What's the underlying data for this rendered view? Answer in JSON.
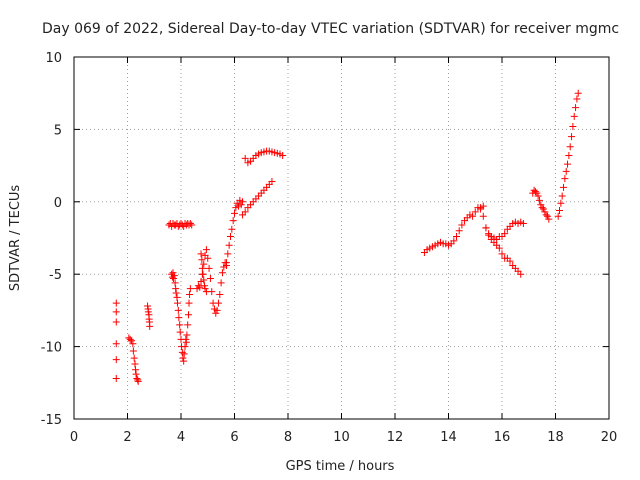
{
  "chart_data": {
    "type": "scatter",
    "title": "Day 069 of 2022, Sidereal Day-to-day VTEC variation (SDTVAR) for receiver mgmc",
    "xlabel": "GPS time / hours",
    "ylabel": "SDTVAR / TECUs",
    "xlim": [
      0,
      20
    ],
    "ylim": [
      -15,
      10
    ],
    "x_ticks": [
      0,
      2,
      4,
      6,
      8,
      10,
      12,
      14,
      16,
      18,
      20
    ],
    "y_ticks": [
      -15,
      -10,
      -5,
      0,
      5,
      10
    ],
    "grid": true,
    "marker": "+",
    "color": "#ff0000",
    "series": [
      {
        "name": "seg_1.6",
        "x": [
          1.58,
          1.58,
          1.58,
          1.58,
          1.58,
          1.58
        ],
        "y": [
          -7.0,
          -7.6,
          -8.3,
          -9.8,
          -10.9,
          -12.2
        ]
      },
      {
        "name": "seg_2.1",
        "x": [
          2.05,
          2.1,
          2.15,
          2.2,
          2.22,
          2.25,
          2.28,
          2.3,
          2.32,
          2.35,
          2.38,
          2.4
        ],
        "y": [
          -9.4,
          -9.5,
          -9.6,
          -9.8,
          -10.3,
          -10.8,
          -11.2,
          -11.6,
          -11.9,
          -12.2,
          -12.3,
          -12.4
        ]
      },
      {
        "name": "seg_2.8",
        "x": [
          2.75,
          2.77,
          2.78,
          2.8,
          2.81,
          2.82,
          2.83
        ],
        "y": [
          -7.2,
          -7.4,
          -7.6,
          -7.8,
          -8.1,
          -8.3,
          -8.6
        ]
      },
      {
        "name": "seg_3.6",
        "x": [
          3.55,
          3.6,
          3.65,
          3.7,
          3.75,
          3.8,
          3.85,
          3.9,
          3.95,
          4.0,
          4.05,
          4.1,
          4.15,
          4.2,
          4.25,
          4.3,
          4.35,
          4.4
        ],
        "y": [
          -1.6,
          -1.5,
          -1.7,
          -1.5,
          -1.6,
          -1.6,
          -1.5,
          -1.7,
          -1.6,
          -1.5,
          -1.6,
          -1.7,
          -1.5,
          -1.6,
          -1.5,
          -1.6,
          -1.5,
          -1.6
        ]
      },
      {
        "name": "seg_3.7",
        "x": [
          3.65,
          3.68,
          3.7,
          3.72,
          3.75,
          3.78,
          3.8,
          3.82,
          3.85,
          3.87,
          3.9,
          3.92,
          3.95,
          3.97,
          4.0,
          4.02,
          4.05,
          4.07,
          4.1,
          4.12,
          4.15,
          4.18,
          4.2,
          4.22,
          4.25,
          4.28,
          4.3,
          4.32,
          4.35
        ],
        "y": [
          -5.0,
          -5.2,
          -4.9,
          -5.3,
          -5.1,
          -5.6,
          -6.0,
          -6.3,
          -6.6,
          -7.0,
          -7.5,
          -8.0,
          -8.5,
          -9.0,
          -9.5,
          -10.0,
          -10.4,
          -10.8,
          -11.0,
          -10.5,
          -10.0,
          -9.5,
          -9.7,
          -9.2,
          -8.5,
          -7.8,
          -7.0,
          -6.4,
          -6.0
        ]
      },
      {
        "name": "seg_4.4",
        "x": [
          4.6,
          4.65,
          4.7,
          4.75,
          4.8,
          4.85,
          4.9,
          4.95,
          5.0,
          5.05,
          5.1,
          5.15,
          5.2,
          5.25,
          5.3,
          5.35,
          5.4,
          5.45,
          5.5,
          5.55,
          5.6,
          5.65,
          5.7
        ],
        "y": [
          -6.0,
          -5.8,
          -5.9,
          -5.5,
          -5.0,
          -4.3,
          -3.7,
          -3.3,
          -3.9,
          -4.6,
          -5.3,
          -6.2,
          -7.0,
          -7.4,
          -7.7,
          -7.5,
          -7.0,
          -6.4,
          -5.6,
          -4.9,
          -4.5,
          -4.2,
          -4.4
        ]
      },
      {
        "name": "seg_4.8",
        "x": [
          4.75,
          4.78,
          4.8,
          4.82,
          4.85,
          4.88,
          4.9,
          4.95
        ],
        "y": [
          -3.6,
          -4.0,
          -4.6,
          -5.0,
          -5.4,
          -5.8,
          -6.0,
          -6.2
        ]
      },
      {
        "name": "seg_5.7",
        "x": [
          5.7,
          5.75,
          5.8,
          5.85,
          5.9,
          5.95,
          6.0,
          6.05,
          6.1,
          6.15,
          6.2,
          6.25,
          6.3
        ],
        "y": [
          -4.2,
          -3.6,
          -3.0,
          -2.4,
          -1.9,
          -1.3,
          -0.8,
          -0.4,
          -0.1,
          -0.3,
          0.1,
          -0.2,
          0.0
        ]
      },
      {
        "name": "seg_6.3",
        "x": [
          6.3,
          6.4,
          6.5,
          6.6,
          6.7,
          6.8,
          6.9,
          7.0,
          7.1,
          7.2,
          7.3,
          7.4
        ],
        "y": [
          -0.9,
          -0.7,
          -0.4,
          -0.2,
          0.0,
          0.2,
          0.4,
          0.6,
          0.8,
          1.0,
          1.2,
          1.4
        ]
      },
      {
        "name": "seg_6.4",
        "x": [
          6.4,
          6.5,
          6.6,
          6.7,
          6.8,
          6.9,
          7.0,
          7.1,
          7.2,
          7.3,
          7.4,
          7.5,
          7.6,
          7.7,
          7.8
        ],
        "y": [
          3.0,
          2.7,
          2.8,
          3.0,
          3.2,
          3.3,
          3.4,
          3.45,
          3.5,
          3.5,
          3.45,
          3.4,
          3.35,
          3.3,
          3.2
        ]
      },
      {
        "name": "seg_13.1",
        "x": [
          13.1,
          13.2,
          13.3,
          13.4,
          13.5,
          13.6,
          13.7,
          13.8,
          13.9,
          14.0,
          14.1,
          14.2,
          14.3,
          14.4,
          14.5,
          14.6,
          14.7,
          14.8,
          14.9,
          15.0,
          15.1,
          15.2,
          15.3
        ],
        "y": [
          -3.5,
          -3.3,
          -3.2,
          -3.1,
          -3.0,
          -2.9,
          -2.8,
          -2.9,
          -2.9,
          -3.0,
          -2.9,
          -2.7,
          -2.4,
          -2.0,
          -1.6,
          -1.3,
          -1.1,
          -0.9,
          -1.0,
          -0.7,
          -0.4,
          -0.5,
          -0.3
        ]
      },
      {
        "name": "seg_15.2",
        "x": [
          15.2,
          15.3,
          15.4,
          15.5,
          15.6,
          15.7,
          15.8,
          15.9,
          16.0,
          16.1,
          16.2,
          16.3,
          16.4,
          16.5,
          16.6,
          16.7
        ],
        "y": [
          -0.4,
          -1.0,
          -1.8,
          -2.3,
          -2.6,
          -2.8,
          -3.0,
          -3.2,
          -3.6,
          -3.9,
          -3.9,
          -4.1,
          -4.4,
          -4.6,
          -4.8,
          -5.0
        ]
      },
      {
        "name": "seg_15.5",
        "x": [
          15.4,
          15.5,
          15.6,
          15.7,
          15.8,
          15.9,
          16.0,
          16.1,
          16.2,
          16.3,
          16.4,
          16.5,
          16.6,
          16.7,
          16.8
        ],
        "y": [
          -1.8,
          -2.2,
          -2.4,
          -2.5,
          -2.6,
          -2.4,
          -2.4,
          -2.2,
          -1.9,
          -1.7,
          -1.5,
          -1.4,
          -1.5,
          -1.4,
          -1.5
        ]
      },
      {
        "name": "seg_17.2",
        "x": [
          17.15,
          17.2,
          17.25,
          17.3,
          17.35,
          17.4,
          17.45,
          17.5,
          17.55,
          17.6,
          17.65,
          17.7,
          17.75
        ],
        "y": [
          0.6,
          0.8,
          0.7,
          0.6,
          0.4,
          0.1,
          -0.2,
          -0.4,
          -0.5,
          -0.7,
          -0.9,
          -1.0,
          -1.2
        ]
      },
      {
        "name": "seg_18.1",
        "x": [
          18.1,
          18.15,
          18.2,
          18.25,
          18.3,
          18.35,
          18.4,
          18.45,
          18.5,
          18.55,
          18.6,
          18.65,
          18.7,
          18.75,
          18.8,
          18.85
        ],
        "y": [
          -1.0,
          -0.6,
          -0.1,
          0.4,
          1.0,
          1.6,
          2.1,
          2.6,
          3.2,
          3.8,
          4.5,
          5.2,
          5.9,
          6.5,
          7.1,
          7.5
        ]
      }
    ]
  }
}
